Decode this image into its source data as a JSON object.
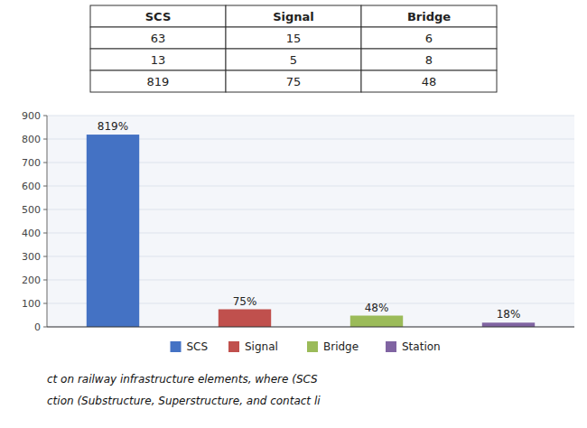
{
  "chart_data": {
    "type": "bar",
    "categories": [
      "SCS",
      "Signal",
      "Bridge",
      "Station"
    ],
    "values": [
      819,
      75,
      48,
      18
    ],
    "value_labels": [
      "819%",
      "75%",
      "48%",
      "18%"
    ],
    "data_labels": true,
    "colors": [
      "#4472C4",
      "#C0504D",
      "#9BBB59",
      "#8064A2"
    ],
    "ylim": [
      0,
      900
    ],
    "yticks": [
      0,
      100,
      200,
      300,
      400,
      500,
      600,
      700,
      800,
      900
    ],
    "grid": true,
    "legend": "bottom",
    "tick_labels": "y",
    "annotations": [
      "ct on railway infrastructure elements, where (SCS",
      "ction (Substructure, Superstructure, and contact li"
    ]
  },
  "table": {
    "headers": [
      "SCS",
      "Signal",
      "Bridge"
    ],
    "rows": [
      [
        "63",
        "15",
        "6"
      ],
      [
        "13",
        "5",
        "8"
      ],
      [
        "819",
        "75",
        "48"
      ]
    ]
  }
}
